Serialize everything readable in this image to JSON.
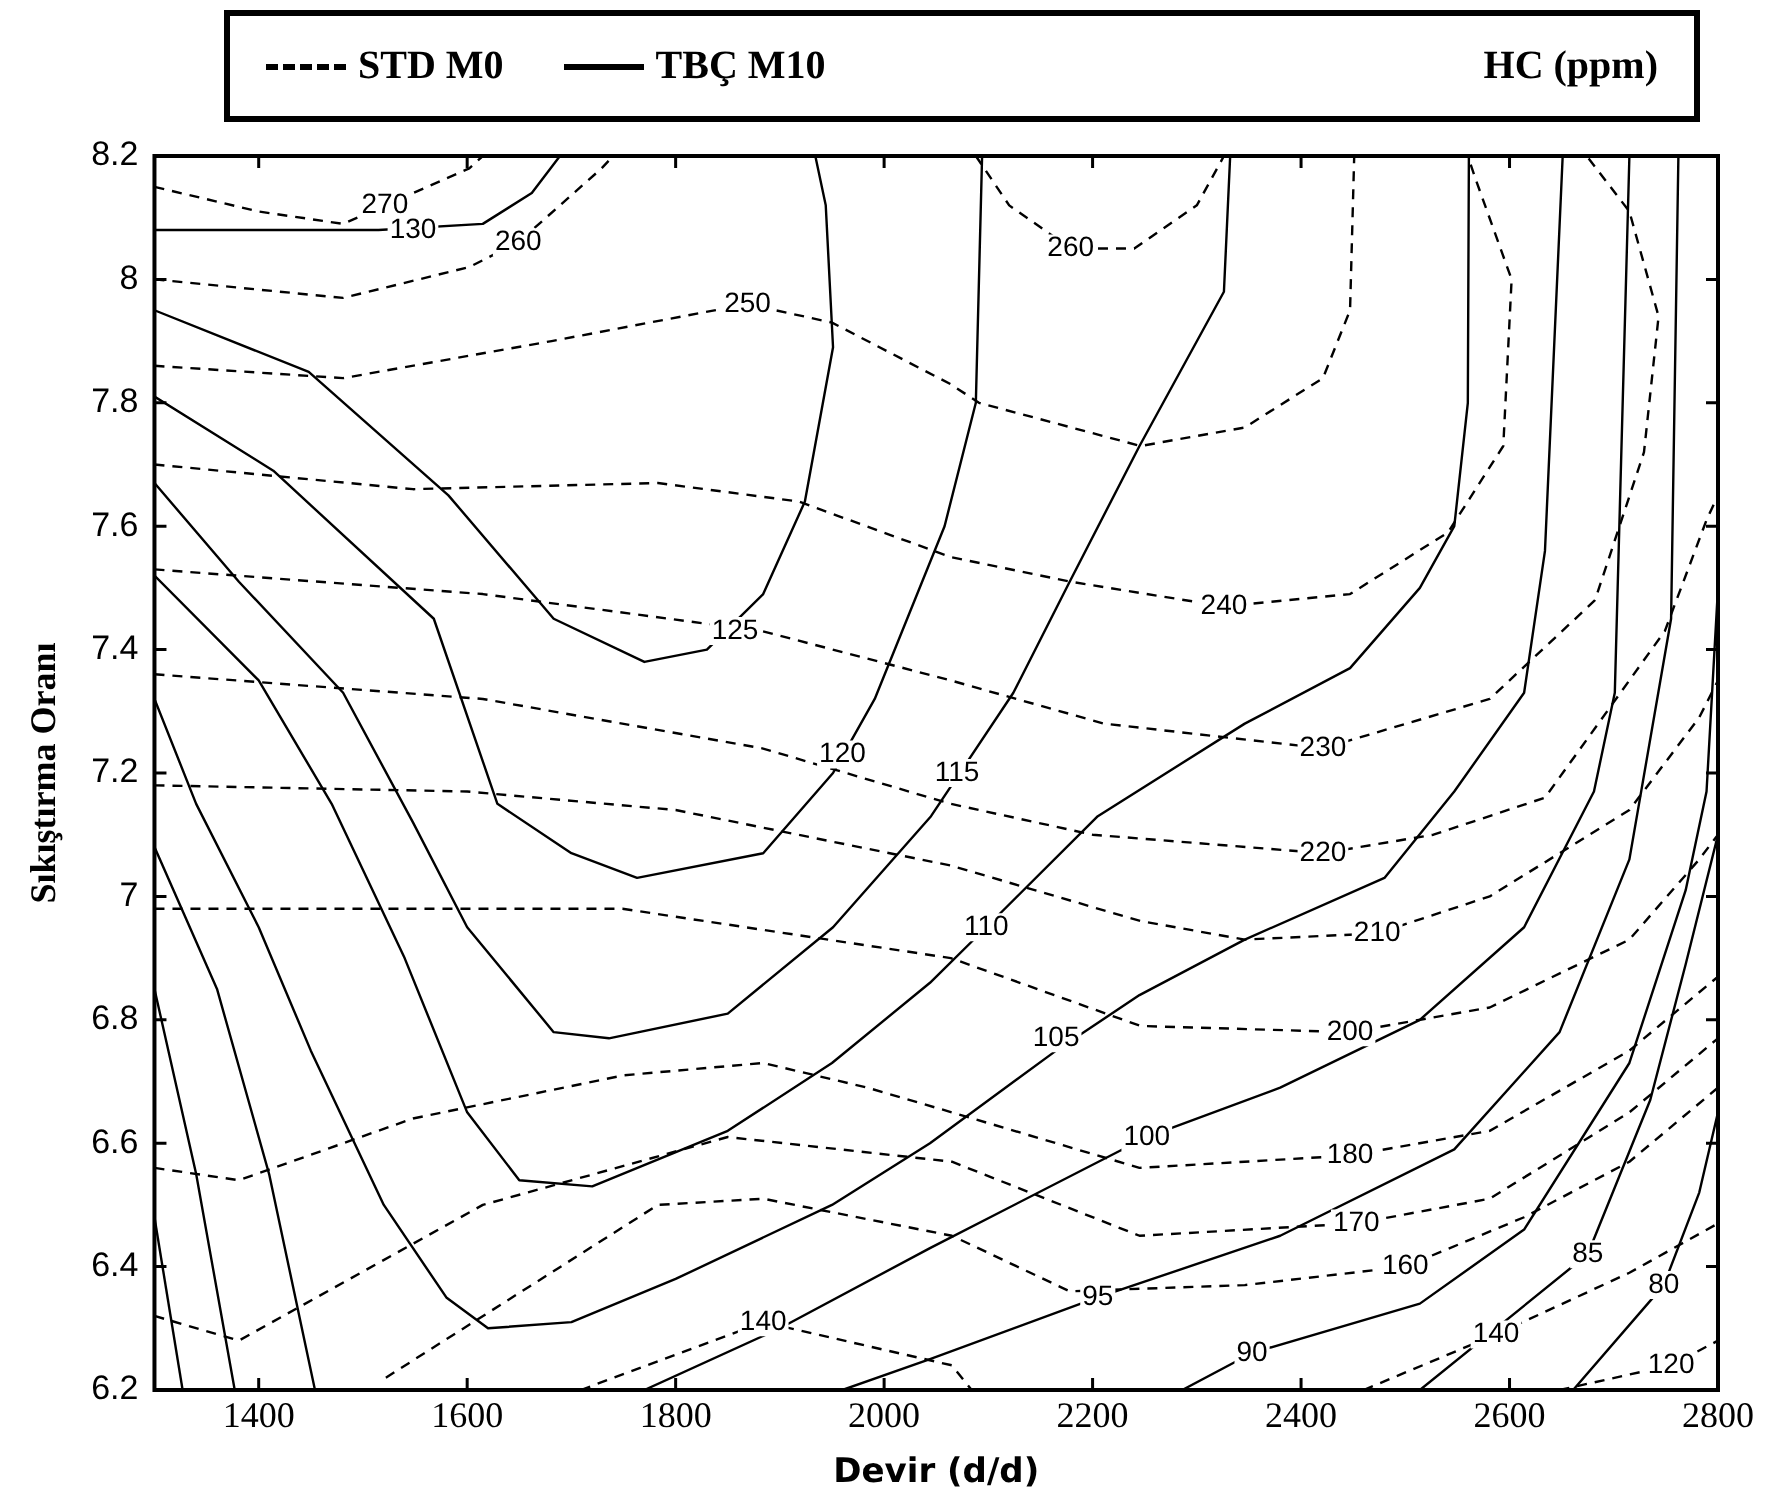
{
  "chart_data": {
    "type": "line",
    "xlabel": "Devir (d/d)",
    "ylabel": "Sıkıştırma Oranı",
    "legend_title": "HC (ppm)",
    "legend": "top",
    "marker": "none",
    "grid": false,
    "xlim": [
      1300,
      2800
    ],
    "xticks": [
      1400,
      1600,
      1800,
      2000,
      2200,
      2400,
      2600,
      2800
    ],
    "ylim": [
      6.2,
      8.2
    ],
    "yticks": [
      6.2,
      6.4,
      6.6,
      6.8,
      7,
      7.2,
      7.4,
      7.6,
      7.8,
      8,
      8.2
    ],
    "series": [
      {
        "name": "STD M0",
        "color": "#000000",
        "line_style": "dashed",
        "x": [
          1300,
          1400,
          1481,
          1602,
          1615
        ],
        "values": [
          8.15,
          8.11,
          8.09,
          8.18,
          8.2
        ]
      },
      {
        "color": "#000000",
        "line_style": "dashed",
        "x": [
          1300,
          1481,
          1602,
          1649,
          1729,
          1740
        ],
        "values": [
          8.0,
          7.97,
          8.02,
          8.06,
          8.18,
          8.2
        ]
      },
      {
        "color": "#000000",
        "line_style": "dashed",
        "x": [
          2088,
          2120,
          2179,
          2240,
          2300,
          2326
        ],
        "values": [
          8.2,
          8.12,
          8.05,
          8.05,
          8.12,
          8.2
        ]
      },
      {
        "color": "#000000",
        "line_style": "dashed",
        "x": [
          1300,
          1481,
          1681,
          1869,
          1950,
          2064,
          2091,
          2246,
          2346,
          2421,
          2447,
          2451
        ],
        "values": [
          7.86,
          7.84,
          7.9,
          7.96,
          7.93,
          7.83,
          7.8,
          7.73,
          7.76,
          7.84,
          7.95,
          8.2
        ]
      },
      {
        "color": "#000000",
        "line_style": "dashed",
        "x": [
          1300,
          1548,
          1783,
          1918,
          2064,
          2179,
          2326,
          2447,
          2541,
          2594,
          2602,
          2568,
          2560
        ],
        "values": [
          7.7,
          7.66,
          7.67,
          7.64,
          7.55,
          7.51,
          7.47,
          7.49,
          7.59,
          7.73,
          8.0,
          8.16,
          8.2
        ]
      },
      {
        "color": "#000000",
        "line_style": "dashed",
        "x": [
          1300,
          1615,
          1883,
          2064,
          2211,
          2421,
          2581,
          2682,
          2729,
          2743,
          2715,
          2674
        ],
        "values": [
          7.53,
          7.49,
          7.43,
          7.35,
          7.28,
          7.24,
          7.32,
          7.48,
          7.72,
          7.94,
          8.11,
          8.2
        ]
      },
      {
        "color": "#000000",
        "line_style": "dashed",
        "x": [
          1300,
          1615,
          1883,
          2064,
          2200,
          2421,
          2527,
          2634,
          2749,
          2789,
          2800
        ],
        "values": [
          7.36,
          7.32,
          7.24,
          7.15,
          7.1,
          7.07,
          7.1,
          7.16,
          7.43,
          7.61,
          7.65
        ]
      },
      {
        "color": "#000000",
        "line_style": "dashed",
        "x": [
          1300,
          1600,
          1800,
          2064,
          2246,
          2346,
          2473,
          2581,
          2715,
          2782,
          2800
        ],
        "values": [
          7.18,
          7.17,
          7.14,
          7.05,
          6.96,
          6.93,
          6.94,
          7.0,
          7.14,
          7.29,
          7.35
        ]
      },
      {
        "color": "#000000",
        "line_style": "dashed",
        "x": [
          1300,
          1749,
          2064,
          2246,
          2447,
          2581,
          2715,
          2782,
          2800
        ],
        "values": [
          6.98,
          6.98,
          6.9,
          6.79,
          6.78,
          6.82,
          6.93,
          7.06,
          7.1
        ]
      },
      {
        "color": "#000000",
        "line_style": "dashed",
        "x": [
          1300,
          1381,
          1548,
          1750,
          1884,
          1984,
          2065,
          2245,
          2447,
          2581,
          2715,
          2800
        ],
        "values": [
          6.56,
          6.54,
          6.64,
          6.71,
          6.73,
          6.69,
          6.65,
          6.56,
          6.58,
          6.62,
          6.75,
          6.87
        ]
      },
      {
        "color": "#000000",
        "line_style": "dashed",
        "x": [
          1300,
          1381,
          1615,
          1850,
          2065,
          2245,
          2453,
          2581,
          2715,
          2800
        ],
        "values": [
          6.32,
          6.28,
          6.5,
          6.61,
          6.57,
          6.45,
          6.47,
          6.51,
          6.65,
          6.77
        ]
      },
      {
        "color": "#000000",
        "line_style": "dashed",
        "x": [
          1522,
          1783,
          1884,
          2065,
          2178,
          2346,
          2500,
          2614,
          2715,
          2800
        ],
        "values": [
          6.22,
          6.5,
          6.51,
          6.45,
          6.36,
          6.37,
          6.4,
          6.48,
          6.57,
          6.69
        ]
      },
      {
        "color": "#000000",
        "line_style": "dashed",
        "x": [
          1709,
          1884,
          2065,
          2084
        ],
        "values": [
          6.2,
          6.31,
          6.24,
          6.2
        ]
      },
      {
        "color": "#000000",
        "line_style": "dashed",
        "x": [
          2460,
          2587,
          2715,
          2800
        ],
        "values": [
          6.2,
          6.29,
          6.39,
          6.47
        ]
      },
      {
        "color": "#000000",
        "line_style": "dashed",
        "x": [
          2648,
          2755,
          2800
        ],
        "values": [
          6.2,
          6.24,
          6.28
        ]
      },
      {
        "name": "TBÇ M10",
        "color": "#000000",
        "line_style": "solid",
        "x": [
          1300,
          1515,
          1615,
          1662,
          1689
        ],
        "values": [
          8.08,
          8.08,
          8.09,
          8.14,
          8.2
        ]
      },
      {
        "color": "#000000",
        "line_style": "solid",
        "x": [
          1300,
          1448,
          1582,
          1683,
          1770,
          1830,
          1884,
          1924,
          1951,
          1944,
          1934
        ],
        "values": [
          7.95,
          7.85,
          7.65,
          7.45,
          7.38,
          7.4,
          7.49,
          7.64,
          7.89,
          8.12,
          8.2
        ]
      },
      {
        "color": "#000000",
        "line_style": "solid",
        "x": [
          1300,
          1414,
          1568,
          1629,
          1700,
          1763,
          1884,
          1951,
          1991,
          2058,
          2088,
          2094
        ],
        "values": [
          7.81,
          7.69,
          7.45,
          7.15,
          7.07,
          7.03,
          7.07,
          7.2,
          7.32,
          7.6,
          7.8,
          8.2
        ]
      },
      {
        "color": "#000000",
        "line_style": "solid",
        "x": [
          1300,
          1381,
          1481,
          1548,
          1600,
          1683,
          1736,
          1850,
          1951,
          2045,
          2124,
          2178,
          2245,
          2326,
          2332
        ],
        "values": [
          7.67,
          7.51,
          7.33,
          7.12,
          6.95,
          6.78,
          6.77,
          6.81,
          6.95,
          7.13,
          7.33,
          7.51,
          7.73,
          7.98,
          8.2
        ]
      },
      {
        "color": "#000000",
        "line_style": "solid",
        "x": [
          1300,
          1400,
          1470,
          1540,
          1600,
          1650,
          1720,
          1850,
          1950,
          2044,
          2098,
          2205,
          2346,
          2447,
          2514,
          2547,
          2560,
          2561
        ],
        "values": [
          7.52,
          7.35,
          7.15,
          6.9,
          6.65,
          6.54,
          6.53,
          6.62,
          6.73,
          6.86,
          6.95,
          7.13,
          7.28,
          7.37,
          7.5,
          7.6,
          7.8,
          8.2
        ]
      },
      {
        "color": "#000000",
        "line_style": "solid",
        "x": [
          1300,
          1340,
          1400,
          1450,
          1520,
          1580,
          1620,
          1700,
          1800,
          1950,
          2044,
          2165,
          2245,
          2346,
          2480,
          2547,
          2614,
          2634,
          2651
        ],
        "values": [
          7.32,
          7.15,
          6.95,
          6.75,
          6.5,
          6.35,
          6.3,
          6.31,
          6.38,
          6.5,
          6.6,
          6.75,
          6.84,
          6.93,
          7.03,
          7.17,
          7.33,
          7.56,
          8.2
        ]
      },
      {
        "color": "#000000",
        "line_style": "solid",
        "x": [
          1770,
          1900,
          2044,
          2252,
          2380,
          2514,
          2614,
          2681,
          2701,
          2715
        ],
        "values": [
          6.2,
          6.3,
          6.43,
          6.61,
          6.69,
          6.8,
          6.95,
          7.17,
          7.33,
          8.2
        ]
      },
      {
        "color": "#000000",
        "line_style": "solid",
        "x": [
          1300,
          1360,
          1410,
          1454
        ],
        "values": [
          7.08,
          6.85,
          6.55,
          6.2
        ]
      },
      {
        "color": "#000000",
        "line_style": "solid",
        "x": [
          1300,
          1340,
          1377
        ],
        "values": [
          6.85,
          6.55,
          6.2
        ]
      },
      {
        "color": "#000000",
        "line_style": "solid",
        "x": [
          1300,
          1327
        ],
        "values": [
          6.48,
          6.2
        ]
      },
      {
        "color": "#000000",
        "line_style": "solid",
        "x": [
          1960,
          2044,
          2205,
          2380,
          2547,
          2648,
          2715,
          2755,
          2762
        ],
        "values": [
          6.2,
          6.25,
          6.35,
          6.45,
          6.59,
          6.78,
          7.06,
          7.45,
          8.2
        ]
      },
      {
        "color": "#000000",
        "line_style": "solid",
        "x": [
          2286,
          2353,
          2514,
          2614,
          2715,
          2769,
          2789,
          2800
        ],
        "values": [
          6.2,
          6.26,
          6.34,
          6.46,
          6.73,
          7.01,
          7.17,
          7.5
        ]
      },
      {
        "color": "#000000",
        "line_style": "solid",
        "x": [
          2514,
          2675,
          2735,
          2769,
          2800
        ],
        "values": [
          6.2,
          6.42,
          6.67,
          6.89,
          7.1
        ]
      },
      {
        "color": "#000000",
        "line_style": "solid",
        "x": [
          2661,
          2748,
          2782,
          2800
        ],
        "values": [
          6.2,
          6.37,
          6.52,
          6.65
        ]
      }
    ],
    "annotations": [
      {
        "text": "270",
        "x": 1521,
        "y": 8.12
      },
      {
        "text": "260",
        "x": 1649,
        "y": 8.06
      },
      {
        "text": "250",
        "x": 1869,
        "y": 7.96
      },
      {
        "text": "260",
        "x": 2179,
        "y": 8.05
      },
      {
        "text": "240",
        "x": 2326,
        "y": 7.47
      },
      {
        "text": "230",
        "x": 2421,
        "y": 7.24
      },
      {
        "text": "220",
        "x": 2421,
        "y": 7.07
      },
      {
        "text": "210",
        "x": 2473,
        "y": 6.94
      },
      {
        "text": "200",
        "x": 2447,
        "y": 6.78
      },
      {
        "text": "180",
        "x": 2447,
        "y": 6.58
      },
      {
        "text": "170",
        "x": 2453,
        "y": 6.47
      },
      {
        "text": "160",
        "x": 2500,
        "y": 6.4
      },
      {
        "text": "140",
        "x": 1884,
        "y": 6.31
      },
      {
        "text": "140",
        "x": 2587,
        "y": 6.29
      },
      {
        "text": "120",
        "x": 2755,
        "y": 6.24
      },
      {
        "text": "130",
        "x": 1548,
        "y": 8.08
      },
      {
        "text": "125",
        "x": 1857,
        "y": 7.43
      },
      {
        "text": "120",
        "x": 1960,
        "y": 7.23
      },
      {
        "text": "115",
        "x": 2070,
        "y": 7.2
      },
      {
        "text": "110",
        "x": 2098,
        "y": 6.95
      },
      {
        "text": "105",
        "x": 2165,
        "y": 6.77
      },
      {
        "text": "100",
        "x": 2252,
        "y": 6.61
      },
      {
        "text": "95",
        "x": 2205,
        "y": 6.35
      },
      {
        "text": "90",
        "x": 2353,
        "y": 6.26
      },
      {
        "text": "85",
        "x": 2675,
        "y": 6.42
      },
      {
        "text": "80",
        "x": 2748,
        "y": 6.37
      }
    ]
  }
}
